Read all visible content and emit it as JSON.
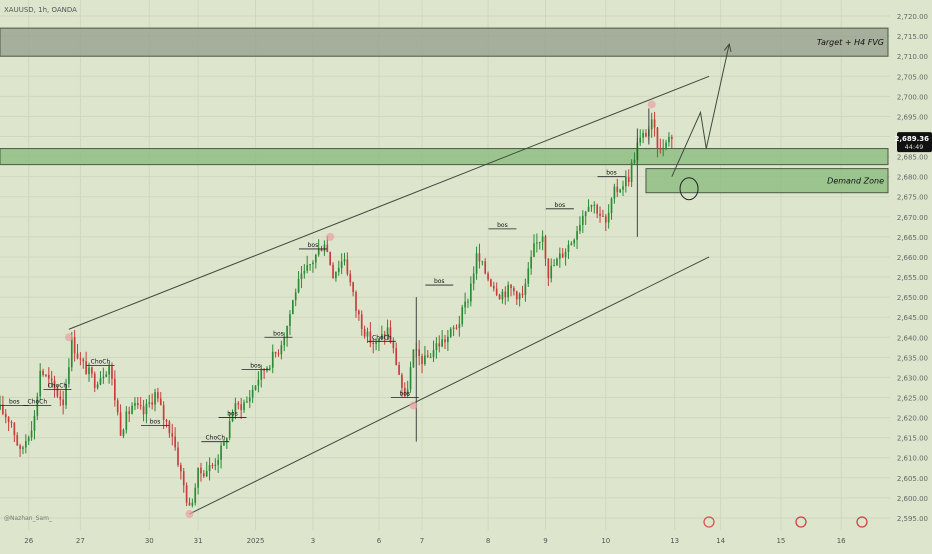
{
  "header": {
    "symbol_line": "XAUUSD, 1h, OANDA"
  },
  "watermark": "@Nazhan_Sam_",
  "price_badge": {
    "price": "2,689.36",
    "countdown": "44:49",
    "value": 2689.36
  },
  "colors": {
    "background": "#dde6cd",
    "candle_up": "#2a8a35",
    "candle_down": "#c83c3c",
    "target_zone": "#9ba592",
    "demand_zone": "#8fbd82",
    "line": "#3d4a3d"
  },
  "chart_data": {
    "type": "candlestick",
    "y_axis": {
      "min": 2592,
      "max": 2724,
      "step": 5,
      "tick_labels": [
        "2,595.00",
        "2,600.00",
        "2,605.00",
        "2,610.00",
        "2,615.00",
        "2,620.00",
        "2,625.00",
        "2,630.00",
        "2,635.00",
        "2,640.00",
        "2,645.00",
        "2,650.00",
        "2,655.00",
        "2,660.00",
        "2,665.00",
        "2,670.00",
        "2,675.00",
        "2,680.00",
        "2,685.00",
        "2,690.00",
        "2,695.00",
        "2,700.00",
        "2,705.00",
        "2,710.00",
        "2,715.00",
        "2,720.00"
      ]
    },
    "x_axis": {
      "start": 0,
      "end": 310,
      "ticks": [
        {
          "label": "26",
          "t": 10
        },
        {
          "label": "27",
          "t": 28
        },
        {
          "label": "30",
          "t": 52
        },
        {
          "label": "31",
          "t": 69
        },
        {
          "label": "2025",
          "t": 89
        },
        {
          "label": "3",
          "t": 109
        },
        {
          "label": "6",
          "t": 132
        },
        {
          "label": "7",
          "t": 147
        },
        {
          "label": "8",
          "t": 170
        },
        {
          "label": "9",
          "t": 190
        },
        {
          "label": "10",
          "t": 211
        },
        {
          "label": "13",
          "t": 235
        },
        {
          "label": "14",
          "t": 251
        },
        {
          "label": "15",
          "t": 272
        },
        {
          "label": "16",
          "t": 293
        }
      ]
    },
    "path_points": [
      [
        0,
        2622
      ],
      [
        4,
        2619
      ],
      [
        7,
        2611
      ],
      [
        12,
        2620
      ],
      [
        14,
        2632
      ],
      [
        18,
        2628
      ],
      [
        22,
        2624
      ],
      [
        25,
        2639
      ],
      [
        28,
        2634
      ],
      [
        33,
        2629
      ],
      [
        38,
        2633
      ],
      [
        42,
        2617
      ],
      [
        46,
        2623
      ],
      [
        50,
        2621
      ],
      [
        54,
        2626
      ],
      [
        57,
        2620
      ],
      [
        60,
        2616
      ],
      [
        63,
        2606
      ],
      [
        66,
        2597
      ],
      [
        69,
        2606
      ],
      [
        74,
        2608
      ],
      [
        78,
        2613
      ],
      [
        81,
        2622
      ],
      [
        86,
        2624
      ],
      [
        90,
        2630
      ],
      [
        93,
        2633
      ],
      [
        97,
        2637
      ],
      [
        100,
        2643
      ],
      [
        103,
        2652
      ],
      [
        108,
        2658
      ],
      [
        113,
        2664
      ],
      [
        116,
        2656
      ],
      [
        120,
        2660
      ],
      [
        124,
        2647
      ],
      [
        128,
        2640
      ],
      [
        131,
        2638
      ],
      [
        135,
        2642
      ],
      [
        139,
        2631
      ],
      [
        141,
        2624
      ],
      [
        144,
        2636
      ],
      [
        148,
        2634
      ],
      [
        152,
        2638
      ],
      [
        156,
        2640
      ],
      [
        160,
        2644
      ],
      [
        163,
        2650
      ],
      [
        166,
        2660
      ],
      [
        170,
        2655
      ],
      [
        174,
        2651
      ],
      [
        178,
        2652
      ],
      [
        182,
        2650
      ],
      [
        186,
        2662
      ],
      [
        189,
        2666
      ],
      [
        191,
        2656
      ],
      [
        195,
        2660
      ],
      [
        199,
        2664
      ],
      [
        202,
        2669
      ],
      [
        205,
        2674
      ],
      [
        208,
        2672
      ],
      [
        211,
        2668
      ],
      [
        214,
        2676
      ],
      [
        219,
        2680
      ],
      [
        222,
        2688
      ],
      [
        225,
        2691
      ],
      [
        227,
        2693
      ],
      [
        230,
        2686
      ],
      [
        232,
        2690
      ],
      [
        234,
        2689.36
      ]
    ],
    "wicks": [
      {
        "t": 145,
        "low": 2614,
        "high": 2650
      },
      {
        "t": 222,
        "low": 2665,
        "high": 2692
      },
      {
        "t": 226,
        "low": 2688,
        "high": 2697
      }
    ],
    "zones": [
      {
        "label": "Target + H4 FVG",
        "from": 2710,
        "to": 2717
      },
      {
        "label": "",
        "from": 2683,
        "to": 2687
      },
      {
        "label": "Demand Zone",
        "t_start": 225,
        "from": 2676,
        "to": 2682
      }
    ],
    "channel": [
      {
        "from": [
          24,
          2642
        ],
        "to": [
          247,
          2705
        ]
      },
      {
        "from": [
          66,
          2596
        ],
        "to": [
          247,
          2660
        ]
      }
    ],
    "projection": [
      [
        234,
        2680
      ],
      [
        244,
        2696
      ],
      [
        246,
        2687
      ],
      [
        254,
        2713
      ]
    ],
    "structure_labels": [
      {
        "text": "bos",
        "t": 5,
        "price": 2623
      },
      {
        "text": "ChoCh",
        "t": 13,
        "price": 2623
      },
      {
        "text": "ChoCh",
        "t": 20,
        "price": 2627
      },
      {
        "text": "ChoCh",
        "t": 35,
        "price": 2633
      },
      {
        "text": "bos",
        "t": 54,
        "price": 2618
      },
      {
        "text": "ChoCh",
        "t": 75,
        "price": 2614
      },
      {
        "text": "bos",
        "t": 81,
        "price": 2620
      },
      {
        "text": "bos",
        "t": 89,
        "price": 2632
      },
      {
        "text": "bos",
        "t": 97,
        "price": 2640
      },
      {
        "text": "bos",
        "t": 109,
        "price": 2662
      },
      {
        "text": "ChoCh",
        "t": 133,
        "price": 2639
      },
      {
        "text": "bos",
        "t": 141,
        "price": 2625
      },
      {
        "text": "bos",
        "t": 153,
        "price": 2653
      },
      {
        "text": "bos",
        "t": 175,
        "price": 2667
      },
      {
        "text": "bos",
        "t": 195,
        "price": 2672
      },
      {
        "text": "bos",
        "t": 213,
        "price": 2680
      }
    ],
    "swing_markers": [
      {
        "t": 24,
        "price": 2640
      },
      {
        "t": 66,
        "price": 2596
      },
      {
        "t": 115,
        "price": 2665
      },
      {
        "t": 144,
        "price": 2623
      },
      {
        "t": 227,
        "price": 2698
      }
    ],
    "marker_circle": {
      "t": 240,
      "price": 2677
    }
  }
}
